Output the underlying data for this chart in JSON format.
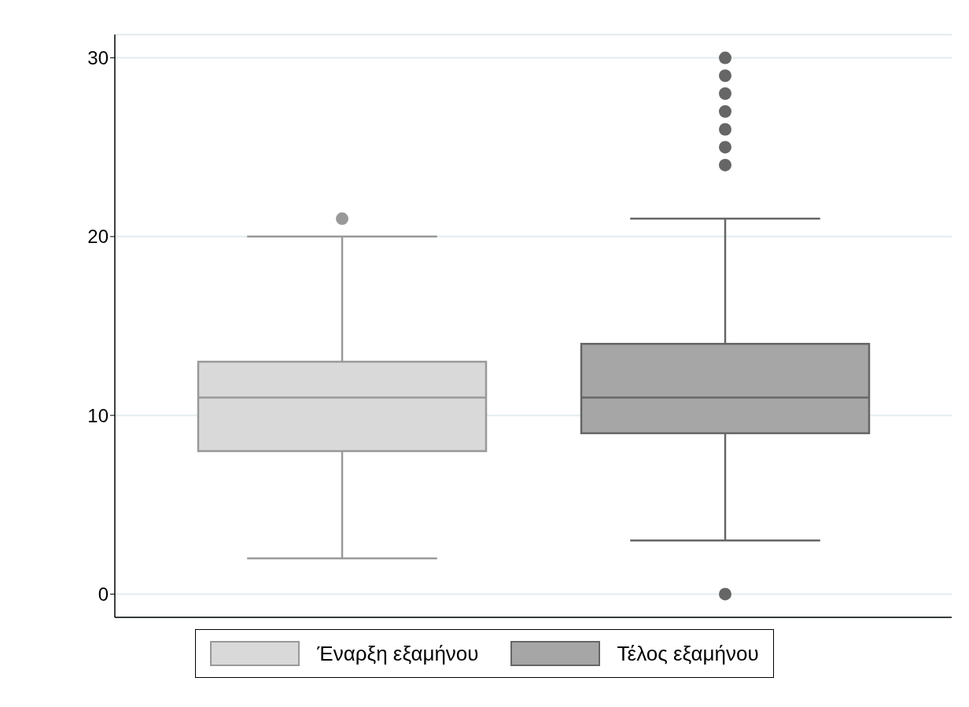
{
  "chart_data": {
    "type": "box",
    "categories": [
      null
    ],
    "series": [
      {
        "name": "Έναρξη εξαμήνου",
        "color": "#d9d9d9",
        "boxes": [
          {
            "low": 2,
            "q1": 8,
            "median": 11,
            "q3": 13,
            "high": 20,
            "outliers": [
              21
            ]
          }
        ]
      },
      {
        "name": "Τέλος εξαμήνου",
        "color": "#a6a6a6",
        "boxes": [
          {
            "low": 3,
            "q1": 9,
            "median": 11,
            "q3": 14,
            "high": 21,
            "outliers": [
              0,
              24,
              25,
              26,
              27,
              28,
              29,
              30
            ]
          }
        ]
      }
    ],
    "ylim": [
      -1.3,
      31.3
    ],
    "yticks": [
      0,
      10,
      20,
      30
    ],
    "grid": "y",
    "legend": "bottom",
    "tick_labels": "y"
  }
}
